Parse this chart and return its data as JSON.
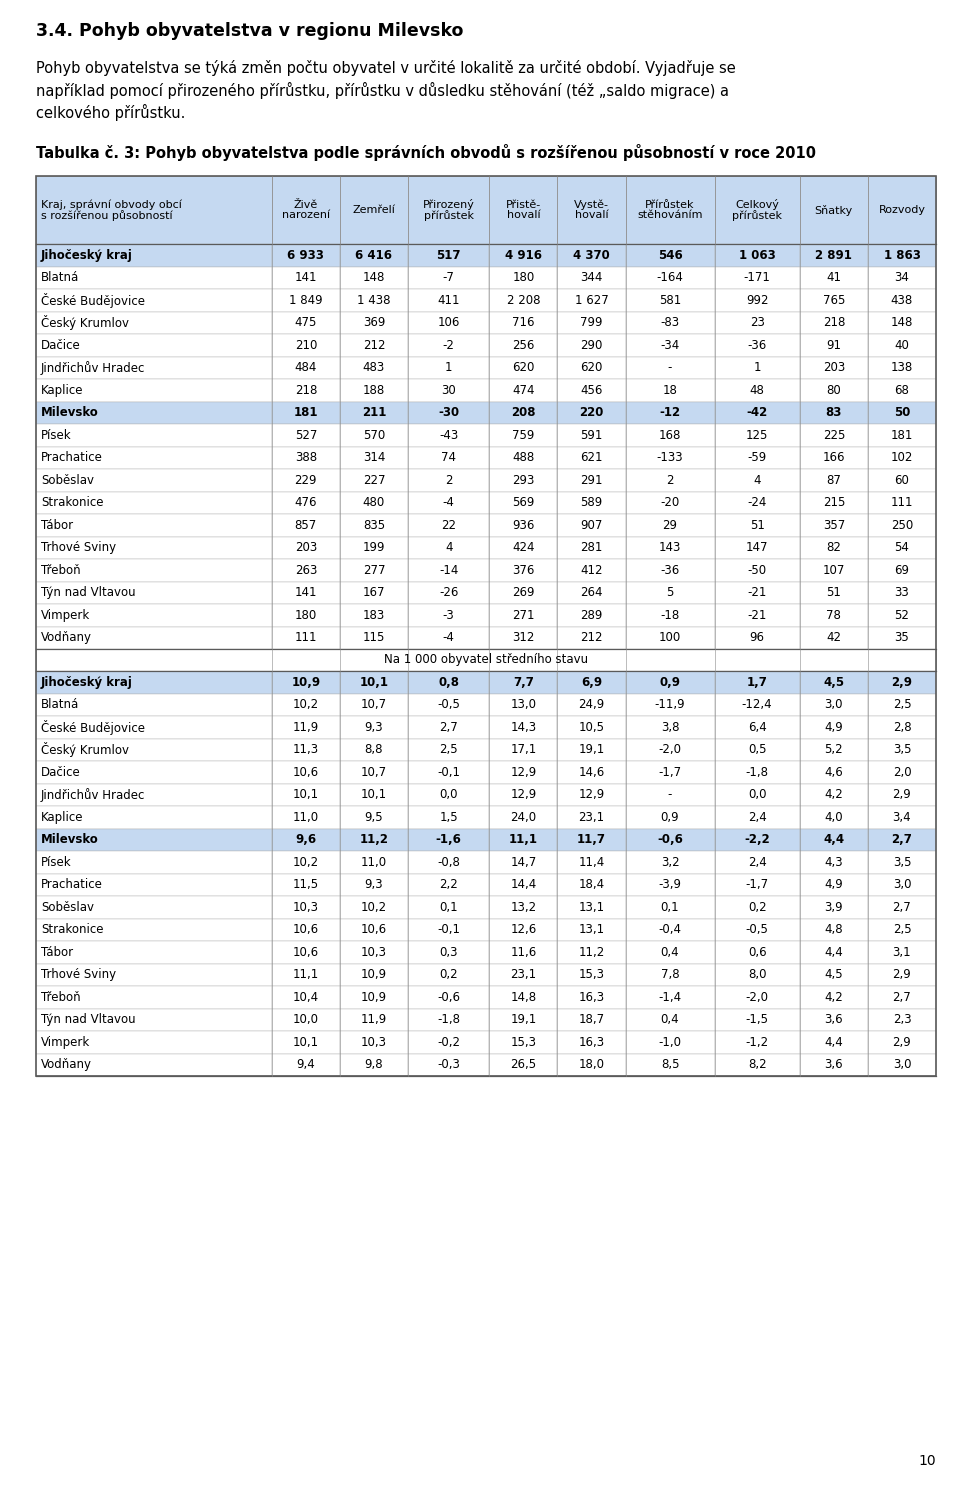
{
  "page_title": "3.4. Pohyb obyvatelstva v regionu Milevsko",
  "intro_text_line1": "Pohyb obyvatelstva se týká změn počtu obyvatel v určité lokalitě za určité období. Vyjadřuje se",
  "intro_text_line2": "například pomocí přirozeného přírůstku, přírůstku v důsledku stěhování (též „saldo migrace) a",
  "intro_text_line3": "celkového přírůstku.",
  "table_title": "Tabulka č. 3: Pohyb obyvatelstva podle správních obvodů s rozšířenou působností v roce 2010",
  "col_headers": [
    "Kraj, správní obvody obcí\ns rozšířenou působností",
    "Živě\nnarození",
    "Zemřelí",
    "Přirozený\npřírůstek",
    "Přistě-\nhovalí",
    "Vystě-\nhovalí",
    "Přírůstek\nstěhováním",
    "Celkový\npřírůstek",
    "Sňatky",
    "Rozvody"
  ],
  "section1_rows": [
    [
      "Jihočeský kraj",
      "6 933",
      "6 416",
      "517",
      "4 916",
      "4 370",
      "546",
      "1 063",
      "2 891",
      "1 863",
      true
    ],
    [
      "Blatná",
      "141",
      "148",
      "-7",
      "180",
      "344",
      "-164",
      "-171",
      "41",
      "34",
      false
    ],
    [
      "České Budějovice",
      "1 849",
      "1 438",
      "411",
      "2 208",
      "1 627",
      "581",
      "992",
      "765",
      "438",
      false
    ],
    [
      "Český Krumlov",
      "475",
      "369",
      "106",
      "716",
      "799",
      "-83",
      "23",
      "218",
      "148",
      false
    ],
    [
      "Dačice",
      "210",
      "212",
      "-2",
      "256",
      "290",
      "-34",
      "-36",
      "91",
      "40",
      false
    ],
    [
      "Jindřichův Hradec",
      "484",
      "483",
      "1",
      "620",
      "620",
      "-",
      "1",
      "203",
      "138",
      false
    ],
    [
      "Kaplice",
      "218",
      "188",
      "30",
      "474",
      "456",
      "18",
      "48",
      "80",
      "68",
      false
    ],
    [
      "Milevsko",
      "181",
      "211",
      "-30",
      "208",
      "220",
      "-12",
      "-42",
      "83",
      "50",
      true
    ],
    [
      "Písek",
      "527",
      "570",
      "-43",
      "759",
      "591",
      "168",
      "125",
      "225",
      "181",
      false
    ],
    [
      "Prachatice",
      "388",
      "314",
      "74",
      "488",
      "621",
      "-133",
      "-59",
      "166",
      "102",
      false
    ],
    [
      "Soběslav",
      "229",
      "227",
      "2",
      "293",
      "291",
      "2",
      "4",
      "87",
      "60",
      false
    ],
    [
      "Strakonice",
      "476",
      "480",
      "-4",
      "569",
      "589",
      "-20",
      "-24",
      "215",
      "111",
      false
    ],
    [
      "Tábor",
      "857",
      "835",
      "22",
      "936",
      "907",
      "29",
      "51",
      "357",
      "250",
      false
    ],
    [
      "Trhové Sviny",
      "203",
      "199",
      "4",
      "424",
      "281",
      "143",
      "147",
      "82",
      "54",
      false
    ],
    [
      "Třeboň",
      "263",
      "277",
      "-14",
      "376",
      "412",
      "-36",
      "-50",
      "107",
      "69",
      false
    ],
    [
      "Týn nad Vltavou",
      "141",
      "167",
      "-26",
      "269",
      "264",
      "5",
      "-21",
      "51",
      "33",
      false
    ],
    [
      "Vimperk",
      "180",
      "183",
      "-3",
      "271",
      "289",
      "-18",
      "-21",
      "78",
      "52",
      false
    ],
    [
      "Vodňany",
      "111",
      "115",
      "-4",
      "312",
      "212",
      "100",
      "96",
      "42",
      "35",
      false
    ]
  ],
  "section_separator": "Na 1 000 obyvatel středního stavu",
  "section2_rows": [
    [
      "Jihočeský kraj",
      "10,9",
      "10,1",
      "0,8",
      "7,7",
      "6,9",
      "0,9",
      "1,7",
      "4,5",
      "2,9",
      true
    ],
    [
      "Blatná",
      "10,2",
      "10,7",
      "-0,5",
      "13,0",
      "24,9",
      "-11,9",
      "-12,4",
      "3,0",
      "2,5",
      false
    ],
    [
      "České Budějovice",
      "11,9",
      "9,3",
      "2,7",
      "14,3",
      "10,5",
      "3,8",
      "6,4",
      "4,9",
      "2,8",
      false
    ],
    [
      "Český Krumlov",
      "11,3",
      "8,8",
      "2,5",
      "17,1",
      "19,1",
      "-2,0",
      "0,5",
      "5,2",
      "3,5",
      false
    ],
    [
      "Dačice",
      "10,6",
      "10,7",
      "-0,1",
      "12,9",
      "14,6",
      "-1,7",
      "-1,8",
      "4,6",
      "2,0",
      false
    ],
    [
      "Jindřichův Hradec",
      "10,1",
      "10,1",
      "0,0",
      "12,9",
      "12,9",
      "-",
      "0,0",
      "4,2",
      "2,9",
      false
    ],
    [
      "Kaplice",
      "11,0",
      "9,5",
      "1,5",
      "24,0",
      "23,1",
      "0,9",
      "2,4",
      "4,0",
      "3,4",
      false
    ],
    [
      "Milevsko",
      "9,6",
      "11,2",
      "-1,6",
      "11,1",
      "11,7",
      "-0,6",
      "-2,2",
      "4,4",
      "2,7",
      true
    ],
    [
      "Písek",
      "10,2",
      "11,0",
      "-0,8",
      "14,7",
      "11,4",
      "3,2",
      "2,4",
      "4,3",
      "3,5",
      false
    ],
    [
      "Prachatice",
      "11,5",
      "9,3",
      "2,2",
      "14,4",
      "18,4",
      "-3,9",
      "-1,7",
      "4,9",
      "3,0",
      false
    ],
    [
      "Soběslav",
      "10,3",
      "10,2",
      "0,1",
      "13,2",
      "13,1",
      "0,1",
      "0,2",
      "3,9",
      "2,7",
      false
    ],
    [
      "Strakonice",
      "10,6",
      "10,6",
      "-0,1",
      "12,6",
      "13,1",
      "-0,4",
      "-0,5",
      "4,8",
      "2,5",
      false
    ],
    [
      "Tábor",
      "10,6",
      "10,3",
      "0,3",
      "11,6",
      "11,2",
      "0,4",
      "0,6",
      "4,4",
      "3,1",
      false
    ],
    [
      "Trhové Sviny",
      "11,1",
      "10,9",
      "0,2",
      "23,1",
      "15,3",
      "7,8",
      "8,0",
      "4,5",
      "2,9",
      false
    ],
    [
      "Třeboň",
      "10,4",
      "10,9",
      "-0,6",
      "14,8",
      "16,3",
      "-1,4",
      "-2,0",
      "4,2",
      "2,7",
      false
    ],
    [
      "Týn nad Vltavou",
      "10,0",
      "11,9",
      "-1,8",
      "19,1",
      "18,7",
      "0,4",
      "-1,5",
      "3,6",
      "2,3",
      false
    ],
    [
      "Vimperk",
      "10,1",
      "10,3",
      "-0,2",
      "15,3",
      "16,3",
      "-1,0",
      "-1,2",
      "4,4",
      "2,9",
      false
    ],
    [
      "Vodňany",
      "9,4",
      "9,8",
      "-0,3",
      "26,5",
      "18,0",
      "8,5",
      "8,2",
      "3,6",
      "3,0",
      false
    ]
  ],
  "page_number": "10",
  "header_bg_color": "#c5d9f1",
  "bold_row_color": "#c5d9f1",
  "text_color": "#000000"
}
